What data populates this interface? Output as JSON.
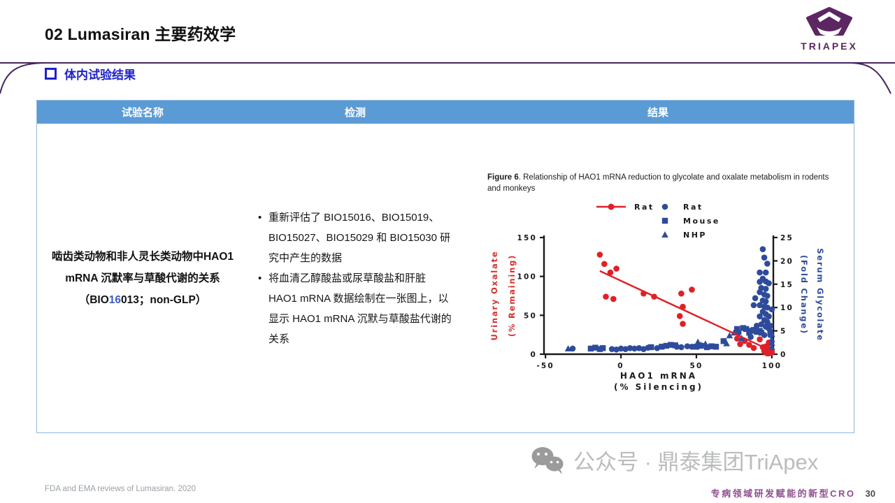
{
  "slide": {
    "title": "02 Lumasiran 主要药效学",
    "section_header": "体内试验结果",
    "logo": {
      "brand": "TRIAPEX"
    },
    "footer": {
      "source": "FDA and EMA reviews of Lumasiran. 2020",
      "watermark": "公众号 · 鼎泰集团TriApex",
      "tagline": "专病领域研发赋能的新型CRO",
      "page_number": "30"
    }
  },
  "table": {
    "headers": [
      "试验名称",
      "检测",
      "结果"
    ],
    "row": {
      "trial_name": {
        "line1": "啮齿类动物和非人灵长类动物中HAO1",
        "line2": "mRNA 沉默率与草酸代谢的关系",
        "line3_prefix": "（BIO",
        "line3_highlight": "16",
        "line3_suffix": "013；non-GLP）"
      },
      "detection_bullets": [
        "重新评估了 BIO15016、BIO15019、BIO15027、BIO15029 和 BIO15030 研究中产生的数据",
        "将血清乙醇酸盐或尿草酸盐和肝脏 HAO1 mRNA 数据绘制在一张图上，以显示 HAO1 mRNA 沉默与草酸盐代谢的关系"
      ],
      "result_caption": {
        "bold": "Figure 6",
        "rest": ". Relationship of HAO1 mRNA reduction to glycolate and oxalate metabolism in rodents and monkeys"
      }
    }
  },
  "chart_data": {
    "type": "scatter",
    "title": "Relationship of HAO1 mRNA reduction to glycolate and oxalate metabolism in rodents and monkeys",
    "x_axis": {
      "label_line1": "HAO1 mRNA",
      "label_line2": "(% Silencing)",
      "ticks": [
        -50,
        0,
        50,
        100
      ],
      "range": [
        -51,
        101
      ]
    },
    "left_axis": {
      "label_line1": "Urinary Oxalate",
      "label_line2": "(% Remaining)",
      "ticks": [
        0,
        50,
        100,
        150
      ],
      "range": [
        0,
        150
      ],
      "color": "#D2322F"
    },
    "right_axis": {
      "label_line1": "Serum Glycolate",
      "label_line2": "(Fold Change)",
      "ticks": [
        0,
        5,
        10,
        15,
        20,
        25
      ],
      "range": [
        0,
        25
      ],
      "color": "#2E4B9B"
    },
    "legend": [
      {
        "label": "Rat",
        "marker": "line-circle",
        "color": "#DF2127"
      },
      {
        "label": "Rat",
        "marker": "circle",
        "color": "#2E4B9B"
      },
      {
        "label": "Mouse",
        "marker": "square",
        "color": "#2E4B9B"
      },
      {
        "label": "NHP",
        "marker": "triangle",
        "color": "#2E4B9B"
      }
    ],
    "trend_line": {
      "axis": "left",
      "color": "#DF2127",
      "from": [
        -14,
        107
      ],
      "to": [
        99,
        5
      ]
    },
    "series": [
      {
        "name": "Rat urinary oxalate",
        "axis": "left",
        "marker": "circle",
        "color": "#DF2127",
        "points": [
          [
            -14,
            128
          ],
          [
            -11,
            116
          ],
          [
            -7,
            105
          ],
          [
            -3,
            110
          ],
          [
            -10,
            74
          ],
          [
            -5,
            71
          ],
          [
            15,
            78
          ],
          [
            22,
            74
          ],
          [
            40,
            78
          ],
          [
            47,
            83
          ],
          [
            41,
            61
          ],
          [
            39,
            49
          ],
          [
            41,
            39
          ],
          [
            77,
            20
          ],
          [
            79,
            13
          ],
          [
            82,
            17
          ],
          [
            85,
            12
          ],
          [
            88,
            8
          ],
          [
            92,
            19
          ],
          [
            94,
            9
          ],
          [
            95,
            4
          ],
          [
            96,
            10
          ],
          [
            97,
            3
          ],
          [
            98,
            7
          ],
          [
            98,
            15
          ],
          [
            99,
            4
          ],
          [
            100,
            2
          ],
          [
            96,
            2
          ],
          [
            98,
            1
          ],
          [
            99,
            2
          ],
          [
            100,
            3
          ],
          [
            97,
            1
          ]
        ]
      },
      {
        "name": "Rat serum glycolate",
        "axis": "right",
        "marker": "circle",
        "color": "#2E4B9B",
        "points": [
          [
            -32,
            1.2
          ],
          [
            -6,
            1.1
          ],
          [
            -3,
            1.0
          ],
          [
            0,
            1.2
          ],
          [
            3,
            1.1
          ],
          [
            6,
            1.3
          ],
          [
            9,
            1.2
          ],
          [
            12,
            1.3
          ],
          [
            15,
            1.1
          ],
          [
            18,
            1.4
          ],
          [
            24,
            1.3
          ],
          [
            37,
            1.6
          ],
          [
            40,
            1.5
          ],
          [
            44,
            1.7
          ],
          [
            47,
            1.6
          ],
          [
            78,
            4.6
          ],
          [
            86,
            3.7
          ],
          [
            95,
            4.1
          ],
          [
            94,
            22.5
          ],
          [
            95,
            20.7
          ],
          [
            97,
            19.4
          ],
          [
            92,
            17.5
          ],
          [
            96,
            17.5
          ],
          [
            94,
            16.2
          ],
          [
            92,
            15.5
          ],
          [
            96,
            15.6
          ],
          [
            98,
            15.2
          ],
          [
            93,
            14.2
          ],
          [
            96,
            14.0
          ],
          [
            92,
            13.3
          ],
          [
            95,
            12.8
          ],
          [
            97,
            12.5
          ],
          [
            89,
            12.0
          ],
          [
            94,
            11.5
          ],
          [
            96,
            11.3
          ],
          [
            92,
            10.5
          ],
          [
            95,
            10.2
          ],
          [
            97,
            10.0
          ],
          [
            88,
            10.5
          ],
          [
            94,
            9.1
          ],
          [
            96,
            8.6
          ],
          [
            100,
            9.6
          ],
          [
            92,
            8.1
          ],
          [
            98,
            8.1
          ],
          [
            95,
            7.3
          ],
          [
            97,
            6.9
          ],
          [
            93,
            6.4
          ],
          [
            90,
            6.1
          ],
          [
            99,
            6.1
          ],
          [
            96,
            5.9
          ],
          [
            98,
            5.5
          ],
          [
            99,
            4.1
          ]
        ]
      },
      {
        "name": "Mouse serum glycolate",
        "axis": "right",
        "marker": "square",
        "color": "#2E4B9B",
        "points": [
          [
            -20,
            1.2
          ],
          [
            -17,
            1.4
          ],
          [
            -14,
            1.1
          ],
          [
            -12,
            1.3
          ],
          [
            20,
            1.5
          ],
          [
            27,
            1.6
          ],
          [
            30,
            1.8
          ],
          [
            33,
            2.0
          ],
          [
            36,
            1.9
          ],
          [
            50,
            1.6
          ],
          [
            53,
            1.8
          ],
          [
            57,
            1.5
          ],
          [
            60,
            1.7
          ],
          [
            63,
            1.6
          ],
          [
            68,
            2.8
          ],
          [
            77,
            5.4
          ],
          [
            81,
            5.6
          ],
          [
            83,
            5.4
          ],
          [
            85,
            4.6
          ],
          [
            86,
            5.0
          ],
          [
            88,
            5.2
          ],
          [
            90,
            4.8
          ],
          [
            92,
            5.0
          ],
          [
            93,
            4.6
          ]
        ]
      },
      {
        "name": "NHP serum glycolate",
        "axis": "right",
        "marker": "triangle",
        "color": "#2E4B9B",
        "points": [
          [
            -35,
            1.2
          ],
          [
            51,
            2.6
          ],
          [
            53,
            2.0
          ],
          [
            56,
            2.2
          ],
          [
            70,
            2.3
          ],
          [
            72,
            4.0
          ],
          [
            75,
            4.6
          ],
          [
            80,
            3.4
          ],
          [
            99,
            5.3
          ],
          [
            99,
            5.0
          ],
          [
            100,
            4.3
          ],
          [
            100,
            3.2
          ],
          [
            100,
            2.4
          ],
          [
            100,
            1.5
          ]
        ]
      }
    ]
  }
}
